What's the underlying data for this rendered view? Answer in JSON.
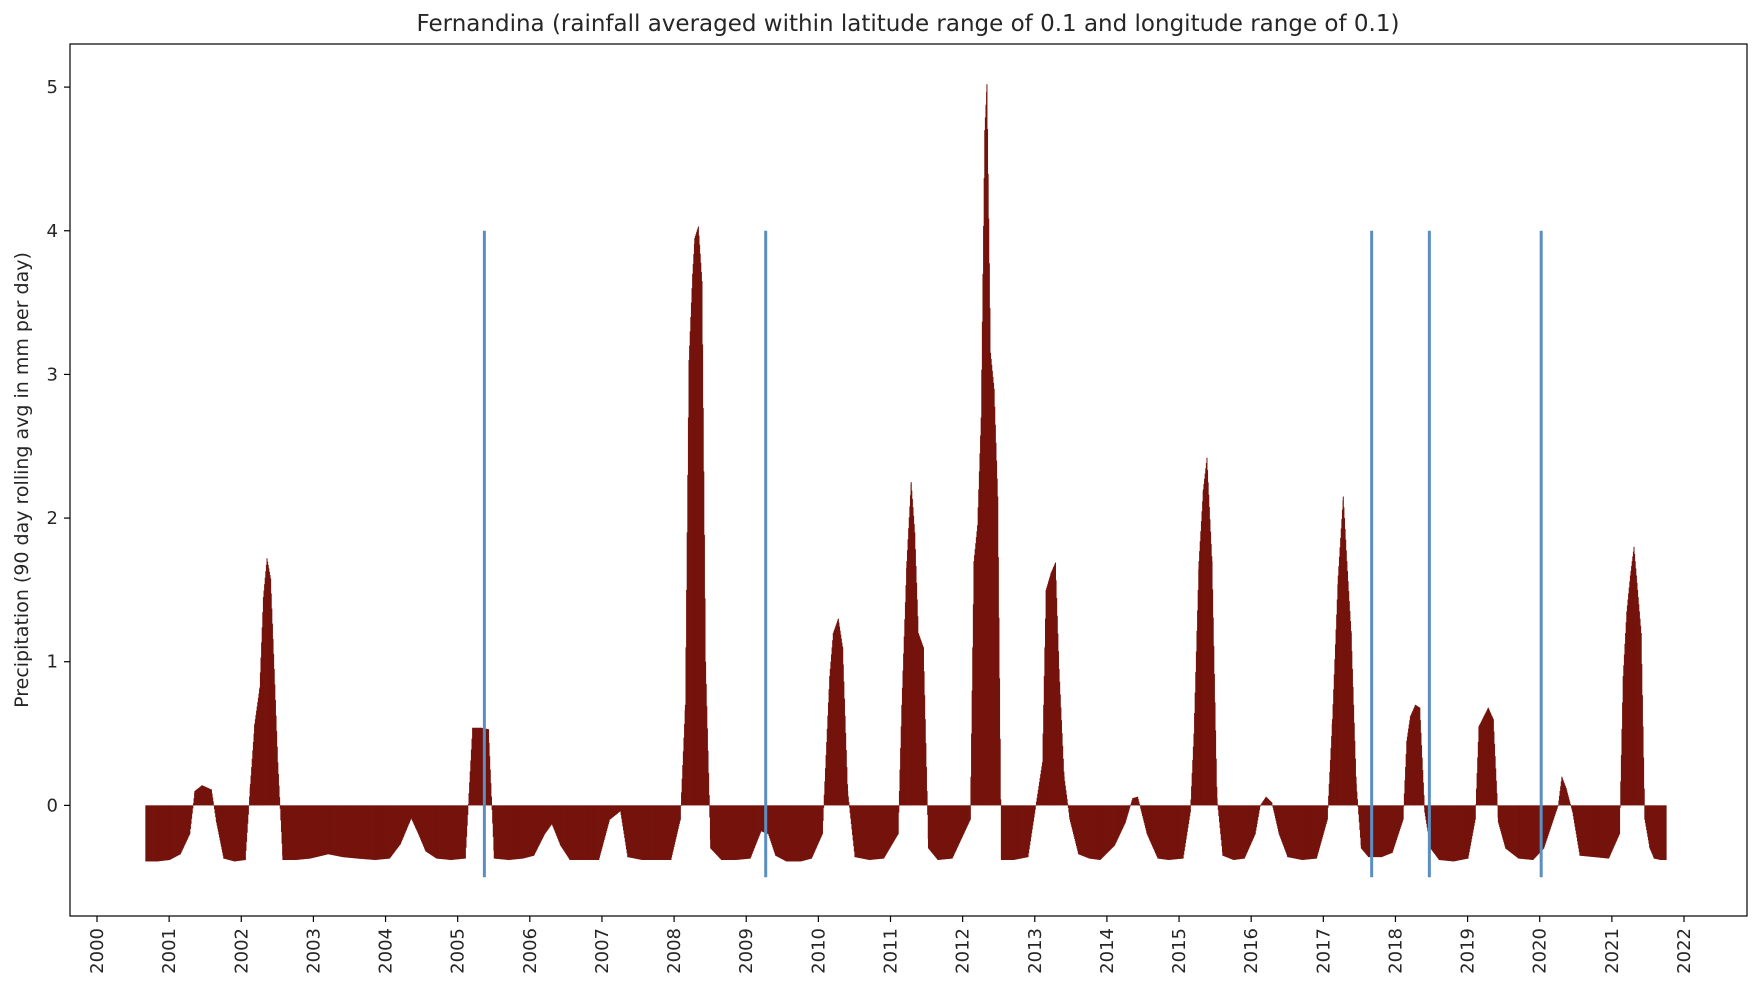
{
  "chart_data": {
    "type": "bar",
    "title": "Fernandina (rainfall averaged within latitude range of 0.1 and longitude range of 0.1)",
    "xlabel": "",
    "ylabel": "Precipitation (90 day rolling avg in mm per day)",
    "xlim": [
      2000.0,
      2022.0
    ],
    "ylim": [
      -0.77,
      5.3
    ],
    "x_ticks": [
      "2000",
      "2001",
      "2002",
      "2003",
      "2004",
      "2005",
      "2006",
      "2007",
      "2008",
      "2009",
      "2010",
      "2011",
      "2012",
      "2013",
      "2014",
      "2015",
      "2016",
      "2017",
      "2018",
      "2019",
      "2020",
      "2021",
      "2022"
    ],
    "y_ticks": [
      "0",
      "1",
      "2",
      "3",
      "4",
      "5"
    ],
    "grid": false,
    "legend": "none",
    "bar_color": "#74130c",
    "event_line_color": "#5b8fc2",
    "series": [
      {
        "points": [
          [
            2000.67,
            -0.39
          ],
          [
            2000.83,
            -0.39
          ],
          [
            2001.0,
            -0.38
          ],
          [
            2001.15,
            -0.34
          ],
          [
            2001.28,
            -0.2
          ],
          [
            2001.35,
            0.1
          ],
          [
            2001.45,
            0.14
          ],
          [
            2001.58,
            0.11
          ],
          [
            2001.65,
            -0.12
          ],
          [
            2001.75,
            -0.37
          ],
          [
            2001.9,
            -0.39
          ],
          [
            2002.05,
            -0.38
          ],
          [
            2002.12,
            0.15
          ],
          [
            2002.18,
            0.57
          ],
          [
            2002.25,
            0.82
          ],
          [
            2002.3,
            1.45
          ],
          [
            2002.35,
            1.72
          ],
          [
            2002.4,
            1.58
          ],
          [
            2002.45,
            0.95
          ],
          [
            2002.5,
            0.3
          ],
          [
            2002.57,
            -0.38
          ],
          [
            2002.75,
            -0.38
          ],
          [
            2002.95,
            -0.37
          ],
          [
            2003.2,
            -0.34
          ],
          [
            2003.4,
            -0.36
          ],
          [
            2003.6,
            -0.37
          ],
          [
            2003.85,
            -0.38
          ],
          [
            2004.05,
            -0.37
          ],
          [
            2004.2,
            -0.27
          ],
          [
            2004.35,
            -0.09
          ],
          [
            2004.45,
            -0.2
          ],
          [
            2004.55,
            -0.32
          ],
          [
            2004.7,
            -0.37
          ],
          [
            2004.9,
            -0.38
          ],
          [
            2005.1,
            -0.37
          ],
          [
            2005.2,
            0.54
          ],
          [
            2005.32,
            0.54
          ],
          [
            2005.42,
            0.53
          ],
          [
            2005.5,
            -0.37
          ],
          [
            2005.7,
            -0.38
          ],
          [
            2005.9,
            -0.37
          ],
          [
            2006.05,
            -0.35
          ],
          [
            2006.2,
            -0.2
          ],
          [
            2006.3,
            -0.13
          ],
          [
            2006.42,
            -0.28
          ],
          [
            2006.55,
            -0.38
          ],
          [
            2006.75,
            -0.38
          ],
          [
            2006.95,
            -0.38
          ],
          [
            2007.1,
            -0.1
          ],
          [
            2007.25,
            -0.04
          ],
          [
            2007.35,
            -0.36
          ],
          [
            2007.55,
            -0.38
          ],
          [
            2007.75,
            -0.38
          ],
          [
            2007.95,
            -0.38
          ],
          [
            2008.08,
            -0.1
          ],
          [
            2008.15,
            0.7
          ],
          [
            2008.2,
            3.1
          ],
          [
            2008.25,
            3.7
          ],
          [
            2008.28,
            3.95
          ],
          [
            2008.33,
            4.03
          ],
          [
            2008.38,
            3.65
          ],
          [
            2008.43,
            1.0
          ],
          [
            2008.5,
            -0.3
          ],
          [
            2008.65,
            -0.38
          ],
          [
            2008.85,
            -0.38
          ],
          [
            2009.05,
            -0.37
          ],
          [
            2009.2,
            -0.18
          ],
          [
            2009.3,
            -0.2
          ],
          [
            2009.4,
            -0.35
          ],
          [
            2009.55,
            -0.39
          ],
          [
            2009.75,
            -0.39
          ],
          [
            2009.9,
            -0.37
          ],
          [
            2010.05,
            -0.2
          ],
          [
            2010.15,
            0.9
          ],
          [
            2010.2,
            1.2
          ],
          [
            2010.27,
            1.3
          ],
          [
            2010.33,
            1.1
          ],
          [
            2010.4,
            0.1
          ],
          [
            2010.5,
            -0.36
          ],
          [
            2010.7,
            -0.38
          ],
          [
            2010.9,
            -0.37
          ],
          [
            2011.1,
            -0.2
          ],
          [
            2011.15,
            0.7
          ],
          [
            2011.22,
            1.7
          ],
          [
            2011.28,
            2.25
          ],
          [
            2011.33,
            1.9
          ],
          [
            2011.38,
            1.2
          ],
          [
            2011.45,
            1.1
          ],
          [
            2011.52,
            -0.3
          ],
          [
            2011.65,
            -0.38
          ],
          [
            2011.85,
            -0.37
          ],
          [
            2012.1,
            -0.1
          ],
          [
            2012.15,
            1.7
          ],
          [
            2012.2,
            1.95
          ],
          [
            2012.25,
            2.7
          ],
          [
            2012.3,
            4.7
          ],
          [
            2012.33,
            5.02
          ],
          [
            2012.38,
            3.15
          ],
          [
            2012.43,
            2.9
          ],
          [
            2012.48,
            2.15
          ],
          [
            2012.53,
            -0.38
          ],
          [
            2012.7,
            -0.38
          ],
          [
            2012.9,
            -0.36
          ],
          [
            2013.1,
            0.3
          ],
          [
            2013.15,
            1.5
          ],
          [
            2013.22,
            1.62
          ],
          [
            2013.28,
            1.69
          ],
          [
            2013.33,
            0.95
          ],
          [
            2013.4,
            0.2
          ],
          [
            2013.48,
            -0.1
          ],
          [
            2013.6,
            -0.34
          ],
          [
            2013.75,
            -0.37
          ],
          [
            2013.9,
            -0.38
          ],
          [
            2014.1,
            -0.28
          ],
          [
            2014.25,
            -0.12
          ],
          [
            2014.35,
            0.05
          ],
          [
            2014.42,
            0.06
          ],
          [
            2014.55,
            -0.2
          ],
          [
            2014.7,
            -0.37
          ],
          [
            2014.85,
            -0.38
          ],
          [
            2015.05,
            -0.37
          ],
          [
            2015.15,
            -0.05
          ],
          [
            2015.2,
            0.5
          ],
          [
            2015.27,
            1.7
          ],
          [
            2015.33,
            2.2
          ],
          [
            2015.38,
            2.42
          ],
          [
            2015.45,
            1.7
          ],
          [
            2015.52,
            0.05
          ],
          [
            2015.6,
            -0.35
          ],
          [
            2015.75,
            -0.38
          ],
          [
            2015.9,
            -0.37
          ],
          [
            2016.05,
            -0.2
          ],
          [
            2016.12,
            0.0
          ],
          [
            2016.2,
            0.06
          ],
          [
            2016.28,
            0.02
          ],
          [
            2016.38,
            -0.2
          ],
          [
            2016.5,
            -0.36
          ],
          [
            2016.7,
            -0.38
          ],
          [
            2016.9,
            -0.37
          ],
          [
            2017.05,
            -0.1
          ],
          [
            2017.12,
            0.6
          ],
          [
            2017.2,
            1.6
          ],
          [
            2017.27,
            2.15
          ],
          [
            2017.32,
            1.7
          ],
          [
            2017.38,
            1.2
          ],
          [
            2017.45,
            0.15
          ],
          [
            2017.52,
            -0.3
          ],
          [
            2017.62,
            -0.36
          ],
          [
            2017.8,
            -0.36
          ],
          [
            2017.95,
            -0.33
          ],
          [
            2018.1,
            -0.1
          ],
          [
            2018.15,
            0.45
          ],
          [
            2018.2,
            0.62
          ],
          [
            2018.27,
            0.7
          ],
          [
            2018.33,
            0.68
          ],
          [
            2018.4,
            -0.05
          ],
          [
            2018.48,
            -0.3
          ],
          [
            2018.6,
            -0.38
          ],
          [
            2018.8,
            -0.39
          ],
          [
            2019.0,
            -0.37
          ],
          [
            2019.1,
            -0.1
          ],
          [
            2019.15,
            0.55
          ],
          [
            2019.22,
            0.62
          ],
          [
            2019.28,
            0.68
          ],
          [
            2019.35,
            0.6
          ],
          [
            2019.42,
            -0.12
          ],
          [
            2019.52,
            -0.3
          ],
          [
            2019.7,
            -0.37
          ],
          [
            2019.9,
            -0.38
          ],
          [
            2020.05,
            -0.3
          ],
          [
            2020.15,
            -0.15
          ],
          [
            2020.25,
            0.0
          ],
          [
            2020.3,
            0.2
          ],
          [
            2020.36,
            0.12
          ],
          [
            2020.45,
            -0.05
          ],
          [
            2020.55,
            -0.35
          ],
          [
            2020.75,
            -0.36
          ],
          [
            2020.95,
            -0.37
          ],
          [
            2021.1,
            -0.2
          ],
          [
            2021.15,
            0.9
          ],
          [
            2021.2,
            1.35
          ],
          [
            2021.25,
            1.6
          ],
          [
            2021.3,
            1.8
          ],
          [
            2021.35,
            1.5
          ],
          [
            2021.4,
            1.2
          ],
          [
            2021.45,
            -0.1
          ],
          [
            2021.52,
            -0.3
          ],
          [
            2021.58,
            -0.37
          ],
          [
            2021.67,
            -0.38
          ],
          [
            2021.75,
            -0.38
          ]
        ]
      }
    ],
    "event_lines": [
      {
        "x": 2005.37,
        "y_range": [
          -0.5,
          4.0
        ]
      },
      {
        "x": 2009.27,
        "y_range": [
          -0.5,
          4.0
        ]
      },
      {
        "x": 2017.67,
        "y_range": [
          -0.5,
          4.0
        ]
      },
      {
        "x": 2018.47,
        "y_range": [
          -0.5,
          4.0
        ]
      },
      {
        "x": 2020.02,
        "y_range": [
          -0.5,
          4.0
        ]
      }
    ]
  }
}
